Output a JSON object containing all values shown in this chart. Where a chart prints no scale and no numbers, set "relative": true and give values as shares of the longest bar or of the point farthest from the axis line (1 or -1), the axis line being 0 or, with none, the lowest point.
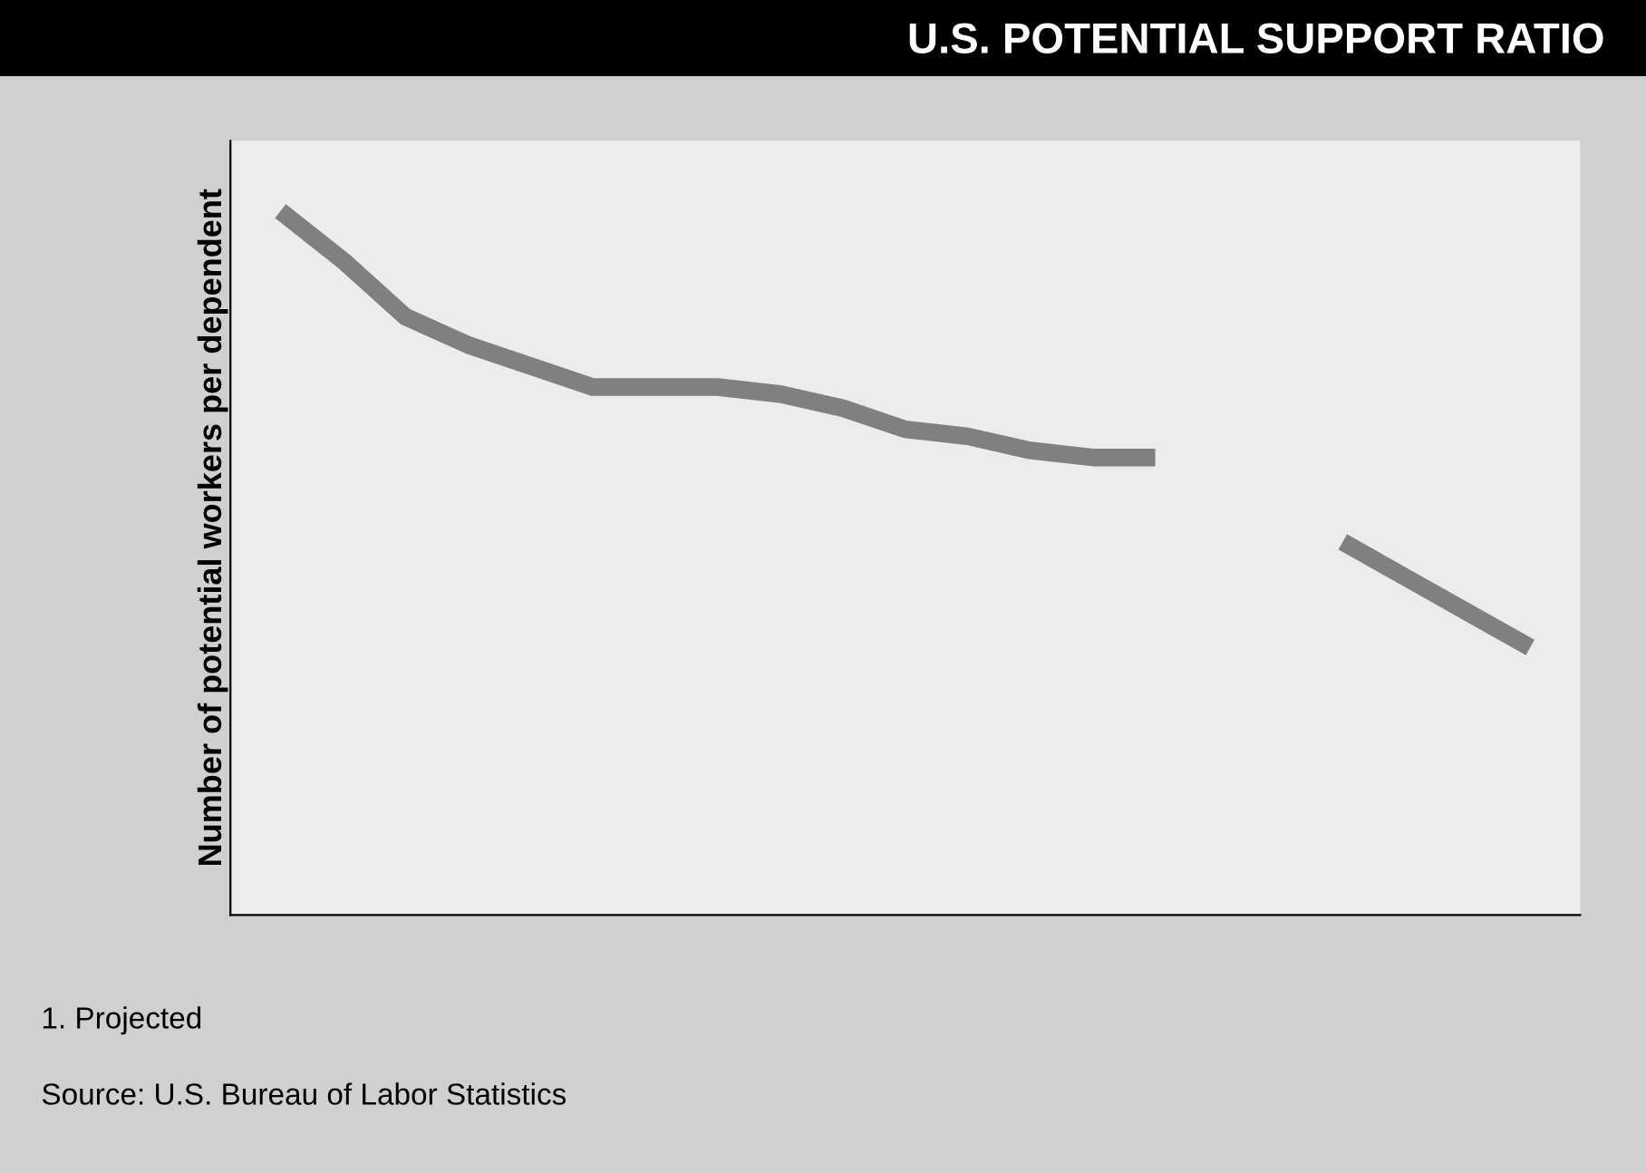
{
  "chart_data": {
    "type": "line",
    "title": "U.S. POTENTIAL SUPPORT RATIO",
    "ylabel": "Number of potential workers per dependent",
    "relative": true,
    "legend": false,
    "marker": "none",
    "line_style": "solid",
    "categories": [
      null,
      null,
      null,
      null,
      null,
      null,
      null,
      null,
      null,
      null,
      null,
      null,
      null,
      null,
      null,
      null,
      null,
      null,
      null,
      null,
      null
    ],
    "series": [
      {
        "color": "#808080",
        "values": [
          1,
          0.93,
          0.85,
          0.81,
          0.78,
          0.75,
          0.75,
          0.75,
          0.74,
          0.72,
          0.69,
          0.68,
          0.66,
          0.65,
          0.65,
          null,
          null,
          null,
          null,
          null,
          null
        ]
      },
      {
        "color": "#808080",
        "values": [
          null,
          null,
          null,
          null,
          null,
          null,
          null,
          null,
          null,
          null,
          null,
          null,
          null,
          null,
          null,
          null,
          null,
          0.53,
          0.48,
          0.43,
          0.38
        ]
      }
    ],
    "annotations": [
      "1. Projected",
      "Source: U.S. Bureau of Labor Statistics"
    ]
  }
}
